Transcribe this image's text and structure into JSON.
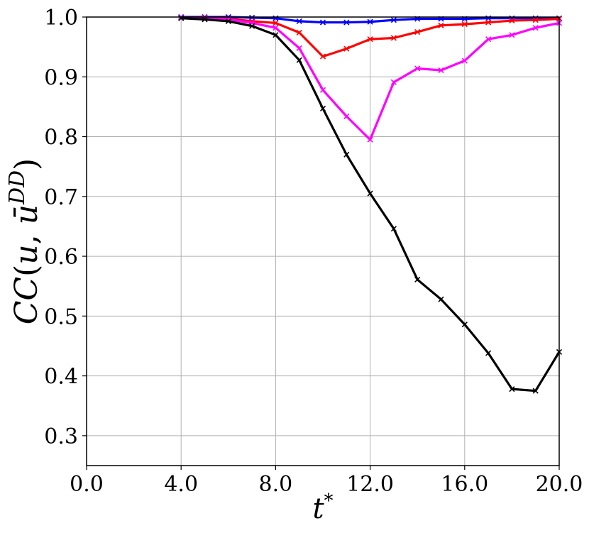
{
  "chart_data": {
    "type": "line",
    "xlabel": "t*",
    "ylabel": "CC(u, ū^DD)",
    "xlim": [
      0,
      20
    ],
    "ylim": [
      0.25,
      1.0
    ],
    "xticks": [
      "0.0",
      "4.0",
      "8.0",
      "12.0",
      "16.0",
      "20.0"
    ],
    "yticks": [
      "0.3",
      "0.4",
      "0.5",
      "0.6",
      "0.7",
      "0.8",
      "0.9",
      "1.0"
    ],
    "grid": true,
    "marker": "x",
    "x": [
      4,
      5,
      6,
      7,
      8,
      9,
      10,
      11,
      12,
      13,
      14,
      15,
      16,
      17,
      18,
      19,
      20
    ],
    "series": [
      {
        "color": "#0000ff",
        "values": [
          1.0,
          1.0,
          1.0,
          0.999,
          0.998,
          0.993,
          0.991,
          0.991,
          0.992,
          0.995,
          0.997,
          0.997,
          0.997,
          0.998,
          0.998,
          0.998,
          0.998
        ]
      },
      {
        "color": "#ff0000",
        "values": [
          0.999,
          0.999,
          0.997,
          0.993,
          0.99,
          0.974,
          0.934,
          0.947,
          0.963,
          0.965,
          0.975,
          0.986,
          0.988,
          0.991,
          0.994,
          0.995,
          0.997
        ]
      },
      {
        "color": "#ff00ff",
        "values": [
          0.999,
          0.998,
          0.996,
          0.99,
          0.982,
          0.948,
          0.878,
          0.834,
          0.795,
          0.891,
          0.914,
          0.911,
          0.927,
          0.963,
          0.97,
          0.982,
          0.99
        ]
      },
      {
        "color": "#000000",
        "values": [
          0.998,
          0.996,
          0.993,
          0.985,
          0.97,
          0.928,
          0.847,
          0.77,
          0.705,
          0.646,
          0.561,
          0.528,
          0.486,
          0.438,
          0.378,
          0.375,
          0.44
        ]
      }
    ]
  }
}
